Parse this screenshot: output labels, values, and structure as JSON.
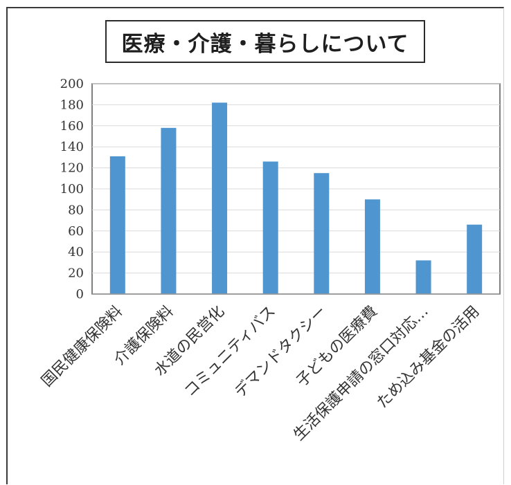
{
  "chart_data": {
    "type": "bar",
    "title": "医療・介護・暮らしについて",
    "categories": [
      "国民健康保険料",
      "介護保険料",
      "水道の民営化",
      "コミュニティバス",
      "デマンドタクシー",
      "子どもの医療費",
      "生活保護申請の窓口対応…",
      "ため込み基金の活用"
    ],
    "values": [
      131,
      158,
      182,
      126,
      115,
      90,
      32,
      66
    ],
    "yticks": [
      0,
      20,
      40,
      60,
      80,
      100,
      120,
      140,
      160,
      180,
      200
    ],
    "ylim": [
      0,
      200
    ],
    "grid": true,
    "legend": "none",
    "xlabel": "",
    "ylabel": "",
    "colors": {
      "bar": "#4f95cf",
      "grid": "#d9d9d9",
      "axis": "#9a9a9a",
      "plot_border": "#555555"
    }
  }
}
